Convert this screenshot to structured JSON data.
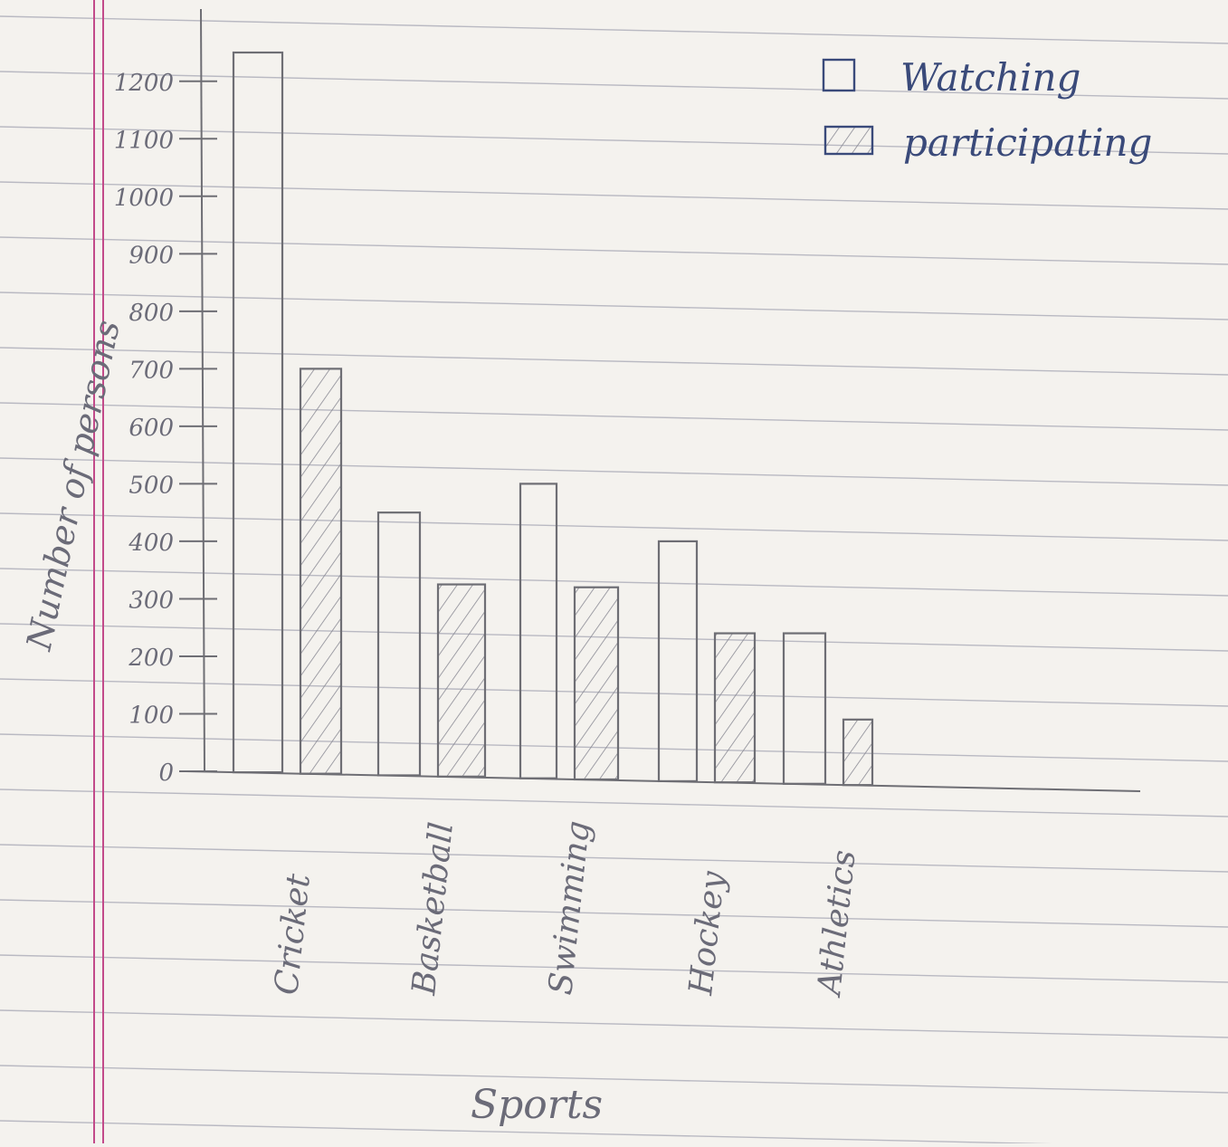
{
  "chart_data": {
    "type": "bar",
    "title": "",
    "xlabel": "Sports",
    "ylabel": "Number of persons",
    "categories": [
      "Cricket",
      "Basketball",
      "Swimming",
      "Hockey",
      "Athletics"
    ],
    "series": [
      {
        "name": "Watching",
        "values": [
          1250,
          450,
          500,
          400,
          240
        ]
      },
      {
        "name": "participating",
        "values": [
          700,
          325,
          320,
          240,
          90
        ]
      }
    ],
    "yticks": [
      0,
      100,
      200,
      300,
      400,
      500,
      600,
      700,
      800,
      900,
      1000,
      1100,
      1200
    ],
    "ylim": [
      0,
      1300
    ],
    "legend": "top-right",
    "grid": false,
    "colors": {
      "pencil": "#6e6e74",
      "ink": "#3a4a7a",
      "rule": "#b9b9c2",
      "margin": "#c24a8a"
    }
  }
}
